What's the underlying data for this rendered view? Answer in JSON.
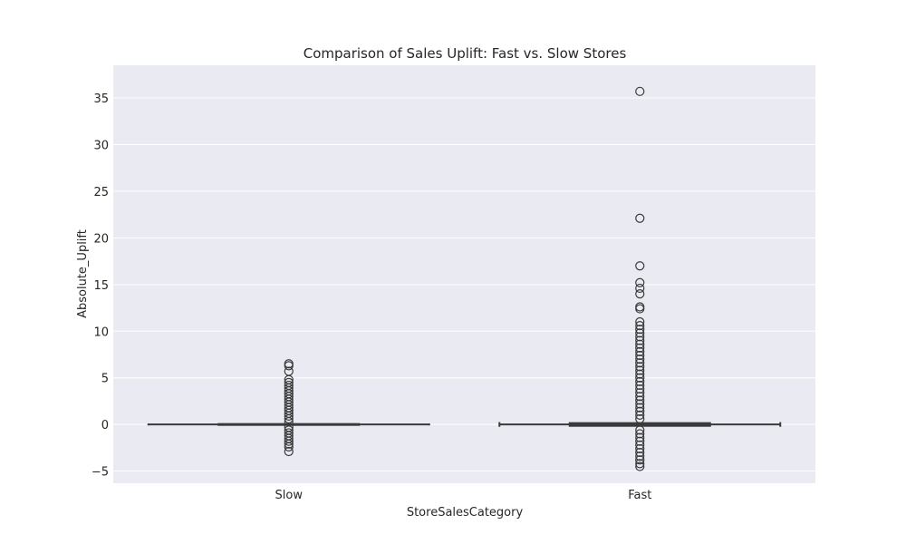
{
  "chart_data": {
    "type": "box",
    "title": "Comparison of Sales Uplift: Fast vs. Slow Stores",
    "xlabel": "StoreSalesCategory",
    "ylabel": "Absolute_Uplift",
    "ylim": [
      -6.3,
      38.5
    ],
    "yticks": [
      -5,
      0,
      5,
      10,
      15,
      20,
      25,
      30,
      35
    ],
    "ytick_labels": [
      "−5",
      "0",
      "5",
      "10",
      "15",
      "20",
      "25",
      "30",
      "35"
    ],
    "grid": true,
    "categories": [
      "Slow",
      "Fast"
    ],
    "boxes": [
      {
        "category": "Slow",
        "q1": -0.05,
        "median": 0,
        "q3": 0.05,
        "whisker_low": -0.1,
        "whisker_high": 0.1,
        "outliers": [
          6.5,
          6.3,
          5.7,
          4.8,
          4.5,
          4.2,
          3.9,
          3.6,
          3.3,
          3.0,
          2.7,
          2.4,
          2.1,
          1.8,
          1.5,
          1.2,
          0.9,
          0.6,
          0.3,
          -0.3,
          -0.6,
          -0.9,
          -1.2,
          -1.5,
          -1.8,
          -2.1,
          -2.4,
          -2.9
        ]
      },
      {
        "category": "Fast",
        "q1": -0.15,
        "median": 0,
        "q3": 0.15,
        "whisker_low": -0.25,
        "whisker_high": 0.25,
        "outliers": [
          35.7,
          22.1,
          17.0,
          15.2,
          14.6,
          14.0,
          12.6,
          12.4,
          11.0,
          10.6,
          10.2,
          9.8,
          9.4,
          9.0,
          8.6,
          8.2,
          7.8,
          7.4,
          7.0,
          6.6,
          6.2,
          5.8,
          5.4,
          5.0,
          4.6,
          4.2,
          3.8,
          3.4,
          3.0,
          2.6,
          2.2,
          1.8,
          1.4,
          1.0,
          0.6,
          -0.6,
          -1.0,
          -1.4,
          -1.8,
          -2.2,
          -2.6,
          -3.0,
          -3.4,
          -3.8,
          -4.2,
          -4.5
        ]
      }
    ]
  }
}
